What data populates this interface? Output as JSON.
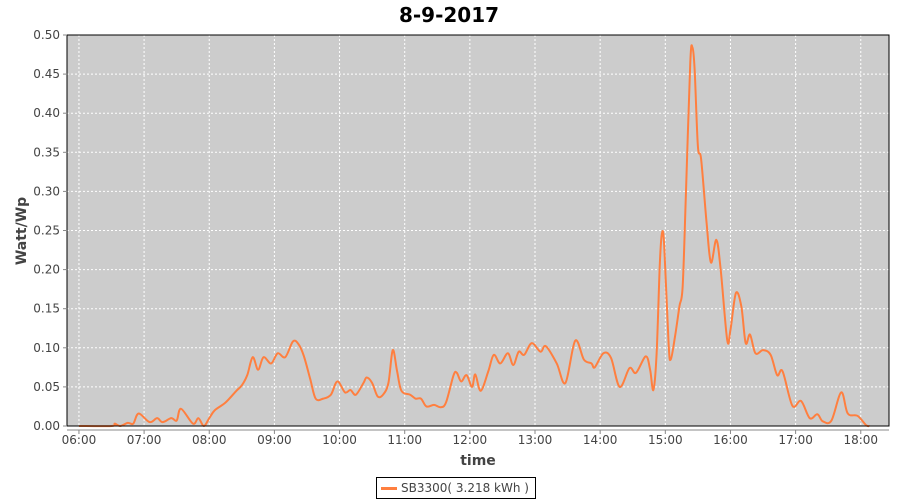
{
  "chart_data": {
    "type": "line",
    "title": "8-9-2017",
    "xlabel": "time",
    "ylabel": "Watt/Wp",
    "xlim": [
      "05:49",
      "18:26"
    ],
    "ylim": [
      0,
      0.5
    ],
    "grid": true,
    "legend_position": "bottom",
    "x_ticks": [
      "06:00",
      "07:00",
      "08:00",
      "09:00",
      "10:00",
      "11:00",
      "12:00",
      "13:00",
      "14:00",
      "15:00",
      "16:00",
      "17:00",
      "18:00"
    ],
    "y_ticks": [
      "0.00",
      "0.05",
      "0.10",
      "0.15",
      "0.20",
      "0.25",
      "0.30",
      "0.35",
      "0.40",
      "0.45",
      "0.50"
    ],
    "colors": {
      "plot_background": "#CCCCCC",
      "grid": "#FFFFFF"
    },
    "series": [
      {
        "name": "SB3300( 3.218 kWh )",
        "color": "#FF7F3F",
        "x": [
          "06:00",
          "06:30",
          "06:33",
          "06:38",
          "06:45",
          "06:50",
          "06:55",
          "07:05",
          "07:12",
          "07:17",
          "07:25",
          "07:30",
          "07:34",
          "07:45",
          "07:50",
          "07:55",
          "08:00",
          "08:05",
          "08:15",
          "08:25",
          "08:30",
          "08:35",
          "08:40",
          "08:45",
          "08:50",
          "08:57",
          "09:03",
          "09:10",
          "09:17",
          "09:22",
          "09:27",
          "09:33",
          "09:38",
          "09:45",
          "09:52",
          "09:58",
          "10:05",
          "10:10",
          "10:15",
          "10:22",
          "10:25",
          "10:30",
          "10:35",
          "10:40",
          "10:45",
          "10:49",
          "10:53",
          "10:57",
          "11:05",
          "11:10",
          "11:15",
          "11:20",
          "11:27",
          "11:33",
          "11:38",
          "11:45",
          "11:48",
          "11:52",
          "11:57",
          "12:02",
          "12:05",
          "12:10",
          "12:17",
          "12:22",
          "12:28",
          "12:35",
          "12:40",
          "12:45",
          "12:50",
          "12:57",
          "13:05",
          "13:10",
          "13:20",
          "13:28",
          "13:37",
          "13:45",
          "13:52",
          "13:55",
          "14:03",
          "14:10",
          "14:18",
          "14:27",
          "14:33",
          "14:42",
          "14:46",
          "14:49",
          "14:52",
          "14:55",
          "14:57",
          "14:59",
          "15:03",
          "15:05",
          "15:09",
          "15:13",
          "15:16",
          "15:19",
          "15:23",
          "15:25",
          "15:27",
          "15:30",
          "15:33",
          "15:38",
          "15:42",
          "15:47",
          "15:51",
          "15:57",
          "16:00",
          "16:05",
          "16:10",
          "16:14",
          "16:18",
          "16:23",
          "16:30",
          "16:37",
          "16:43",
          "16:48",
          "16:57",
          "17:05",
          "17:13",
          "17:20",
          "17:25",
          "17:33",
          "17:42",
          "17:48",
          "17:57",
          "18:05",
          "18:08"
        ],
        "y": [
          0,
          0,
          0.003,
          0,
          0.004,
          0.003,
          0.016,
          0.005,
          0.01,
          0.005,
          0.01,
          0.007,
          0.022,
          0.003,
          0.01,
          0,
          0.01,
          0.02,
          0.03,
          0.045,
          0.052,
          0.065,
          0.088,
          0.072,
          0.088,
          0.08,
          0.093,
          0.088,
          0.108,
          0.105,
          0.09,
          0.06,
          0.035,
          0.035,
          0.04,
          0.057,
          0.043,
          0.046,
          0.04,
          0.055,
          0.062,
          0.055,
          0.038,
          0.04,
          0.055,
          0.097,
          0.07,
          0.045,
          0.04,
          0.035,
          0.035,
          0.025,
          0.027,
          0.024,
          0.03,
          0.065,
          0.068,
          0.057,
          0.065,
          0.05,
          0.066,
          0.045,
          0.07,
          0.091,
          0.08,
          0.093,
          0.078,
          0.095,
          0.091,
          0.106,
          0.095,
          0.102,
          0.08,
          0.055,
          0.109,
          0.085,
          0.08,
          0.075,
          0.093,
          0.087,
          0.05,
          0.074,
          0.068,
          0.089,
          0.072,
          0.046,
          0.093,
          0.209,
          0.247,
          0.23,
          0.106,
          0.085,
          0.115,
          0.153,
          0.179,
          0.298,
          0.465,
          0.484,
          0.456,
          0.358,
          0.341,
          0.26,
          0.209,
          0.238,
          0.2,
          0.11,
          0.123,
          0.17,
          0.153,
          0.106,
          0.117,
          0.093,
          0.097,
          0.091,
          0.065,
          0.07,
          0.026,
          0.032,
          0.01,
          0.015,
          0.006,
          0.007,
          0.043,
          0.016,
          0.013,
          0.001,
          0
        ]
      }
    ]
  }
}
